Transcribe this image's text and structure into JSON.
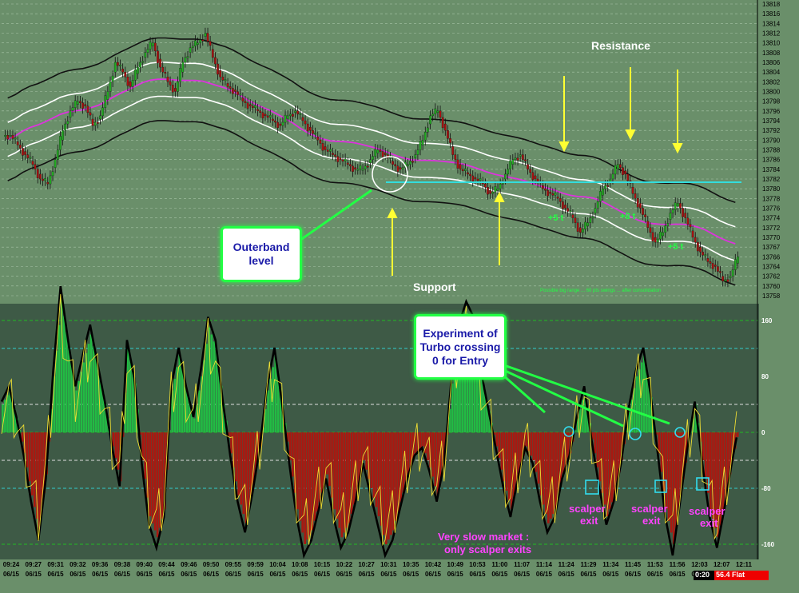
{
  "chart_data": [
    {
      "type": "candlestick",
      "panel": "price",
      "y_ticks": [
        "13818",
        "13816",
        "13814",
        "13812",
        "13810",
        "13808",
        "13806",
        "13804",
        "13802",
        "13800",
        "13798",
        "13796",
        "13794",
        "13792",
        "13790",
        "13788",
        "13786",
        "13784",
        "13782",
        "13780",
        "13778",
        "13776",
        "13774",
        "13772",
        "13770",
        "13767",
        "13766",
        "13764",
        "13762",
        "13760",
        "13758"
      ],
      "ylim": [
        13757,
        13819
      ],
      "support_level": 13781,
      "annotations": {
        "resistance": "Resistance",
        "support": "Support",
        "outerband": "Outerband level",
        "gains": [
          "+5 t",
          "+8 t",
          "+5 t"
        ]
      },
      "series": [
        {
          "name": "price",
          "approx_close": [
            13791,
            13789,
            13787,
            13785,
            13782,
            13781,
            13786,
            13792,
            13796,
            13798,
            13797,
            13793,
            13795,
            13800,
            13806,
            13804,
            13801,
            13805,
            13808,
            13810,
            13805,
            13802,
            13800,
            13806,
            13809,
            13810,
            13812,
            13807,
            13803,
            13801,
            13800,
            13798,
            13797,
            13796,
            13795,
            13794,
            13793,
            13795,
            13796,
            13794,
            13792,
            13790,
            13788,
            13787,
            13786,
            13785,
            13784,
            13784,
            13786,
            13788,
            13787,
            13785,
            13784,
            13785,
            13787,
            13790,
            13795,
            13796,
            13792,
            13787,
            13784,
            13783,
            13782,
            13781,
            13779,
            13780,
            13783,
            13786,
            13787,
            13784,
            13782,
            13780,
            13779,
            13778,
            13776,
            13774,
            13771,
            13773,
            13776,
            13780,
            13782,
            13785,
            13783,
            13779,
            13776,
            13772,
            13769,
            13771,
            13775,
            13777,
            13774,
            13770,
            13767,
            13765,
            13764,
            13761,
            13762,
            13766
          ]
        }
      ]
    },
    {
      "type": "oscillator",
      "panel": "turbo",
      "y_ticks": [
        "160",
        "80",
        "0",
        "-80",
        "-160"
      ],
      "ylim": [
        -210,
        210
      ],
      "x_times": [
        "09:24",
        "09:27",
        "09:31",
        "09:32",
        "09:36",
        "09:38",
        "09:40",
        "09:44",
        "09:46",
        "09:50",
        "09:55",
        "09:59",
        "10:04",
        "10:08",
        "10:15",
        "10:22",
        "10:27",
        "10:31",
        "10:35",
        "10:42",
        "10:49",
        "10:53",
        "11:00",
        "11:07",
        "11:14",
        "11:24",
        "11:29",
        "11:34",
        "11:45",
        "11:53",
        "11:56",
        "12:03",
        "12:07",
        "12:11"
      ],
      "x_dates": [
        "06/15"
      ],
      "annotations": {
        "experiment": "Experiment of Turbo crossing 0 for Entry",
        "scalper_exit": "scalper exit",
        "slow_market": "Very slow market : only scalper exits"
      },
      "series": [
        {
          "name": "turbo",
          "approx_values": [
            40,
            60,
            20,
            -30,
            -90,
            -140,
            -60,
            80,
            190,
            120,
            60,
            100,
            140,
            90,
            40,
            -20,
            -70,
            120,
            70,
            -40,
            -120,
            -150,
            -110,
            60,
            110,
            60,
            20,
            80,
            150,
            120,
            40,
            -30,
            -90,
            -130,
            -80,
            -20,
            60,
            110,
            40,
            -40,
            -110,
            -160,
            -140,
            -100,
            -60,
            -110,
            -150,
            -130,
            -90,
            -40,
            -80,
            -120,
            -160,
            -140,
            -100,
            -60,
            -30,
            -20,
            -50,
            -90,
            -40,
            70,
            140,
            170,
            150,
            80,
            30,
            -20,
            -70,
            -110,
            -60,
            -20,
            -40,
            -90,
            -130,
            -110,
            -60,
            -30,
            20,
            60,
            -10,
            -70,
            -120,
            -90,
            -40,
            30,
            80,
            110,
            50,
            -30,
            -110,
            -160,
            -90,
            -20,
            40,
            -40,
            -110,
            -150,
            -100,
            -40,
            10
          ]
        }
      ]
    }
  ],
  "status": {
    "time": "0:20",
    "info": "56.4 Flat"
  },
  "tiny_note": "Possible big range ... 60 pts swings ... after consolidation"
}
